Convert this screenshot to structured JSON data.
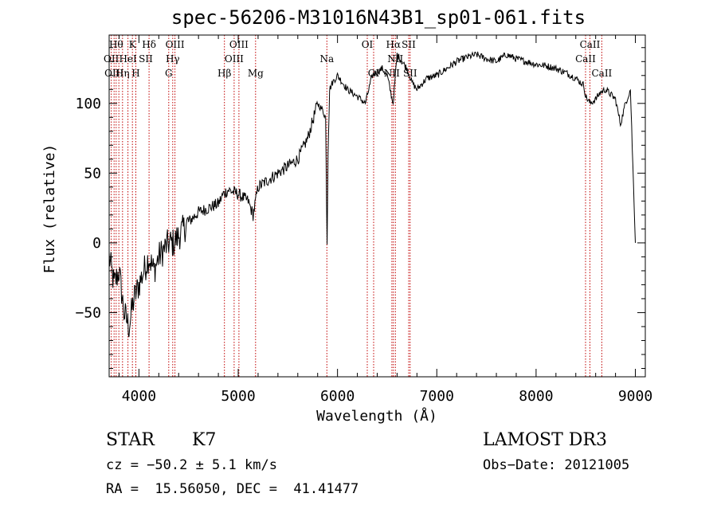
{
  "header": {
    "title": "spec-56206-M31016N43B1_sp01-061.fits"
  },
  "chart_data": {
    "type": "line",
    "title": "spec-56206-M31016N43B1_sp01-061.fits",
    "xlabel": "Wavelength (Å)",
    "ylabel": "Flux (relative)",
    "xlim": [
      3700,
      9100
    ],
    "ylim": [
      -96,
      149
    ],
    "xticks": [
      4000,
      5000,
      6000,
      7000,
      8000,
      9000
    ],
    "xtick_labels": [
      "4000",
      "5000",
      "6000",
      "7000",
      "8000",
      "9000"
    ],
    "yticks": [
      -50,
      0,
      50,
      100
    ],
    "ytick_labels": [
      "−50",
      "0",
      "50",
      "100"
    ],
    "series": [
      {
        "name": "spectrum",
        "x": [
          3700,
          3750,
          3800,
          3850,
          3900,
          3950,
          4000,
          4050,
          4100,
          4150,
          4200,
          4250,
          4300,
          4350,
          4400,
          4500,
          4600,
          4700,
          4800,
          4850,
          4900,
          5000,
          5100,
          5150,
          5200,
          5300,
          5400,
          5500,
          5600,
          5700,
          5800,
          5850,
          5880,
          5895,
          5905,
          5920,
          5950,
          6000,
          6100,
          6200,
          6280,
          6350,
          6450,
          6500,
          6560,
          6600,
          6700,
          6750,
          6800,
          6900,
          7000,
          7100,
          7200,
          7300,
          7400,
          7500,
          7600,
          7700,
          7800,
          7900,
          8000,
          8100,
          8200,
          8300,
          8400,
          8480,
          8500,
          8545,
          8600,
          8650,
          8700,
          8800,
          8850,
          8900,
          8950,
          9000
        ],
        "y": [
          -10,
          -30,
          -20,
          -50,
          -60,
          -40,
          -30,
          -20,
          -10,
          -20,
          -10,
          -5,
          0,
          0,
          5,
          15,
          22,
          25,
          28,
          35,
          38,
          35,
          30,
          20,
          40,
          45,
          50,
          55,
          60,
          75,
          100,
          95,
          90,
          0,
          65,
          110,
          115,
          120,
          110,
          105,
          100,
          120,
          125,
          120,
          100,
          135,
          125,
          115,
          110,
          118,
          120,
          125,
          130,
          133,
          135,
          132,
          130,
          135,
          132,
          130,
          128,
          127,
          125,
          122,
          118,
          113,
          105,
          100,
          103,
          108,
          110,
          103,
          85,
          100,
          110,
          0
        ]
      }
    ],
    "lines": {
      "color": "#c00000",
      "wavelengths": [
        3722,
        3750,
        3771,
        3798,
        3835,
        3889,
        3934,
        3969,
        4102,
        4300,
        4340,
        4363,
        4861,
        4959,
        5007,
        5175,
        5893,
        6300,
        6364,
        6548,
        6563,
        6583,
        6717,
        6731,
        8498,
        8542,
        8662
      ],
      "labels": [
        {
          "text": "Hθ",
          "row": 1,
          "w": 3771
        },
        {
          "text": "K",
          "row": 1,
          "w": 3934
        },
        {
          "text": "Hδ",
          "row": 1,
          "w": 4102
        },
        {
          "text": "OIII",
          "row": 1,
          "w": 4363
        },
        {
          "text": "OIII",
          "row": 1,
          "w": 5007
        },
        {
          "text": "OI",
          "row": 1,
          "w": 6300
        },
        {
          "text": "Hα",
          "row": 1,
          "w": 6563
        },
        {
          "text": "SII",
          "row": 1,
          "w": 6717
        },
        {
          "text": "CaII",
          "row": 1,
          "w": 8542
        },
        {
          "text": "OII",
          "row": 2,
          "w": 3722
        },
        {
          "text": "HeI",
          "row": 2,
          "w": 3889
        },
        {
          "text": "SII",
          "row": 2,
          "w": 4069
        },
        {
          "text": "Hγ",
          "row": 2,
          "w": 4340
        },
        {
          "text": "OIII",
          "row": 2,
          "w": 4959
        },
        {
          "text": "Na",
          "row": 2,
          "w": 5893
        },
        {
          "text": "NII",
          "row": 2,
          "w": 6583
        },
        {
          "text": "CaII",
          "row": 2,
          "w": 8498
        },
        {
          "text": "OIII",
          "row": 3,
          "w": 3750
        },
        {
          "text": "Hη",
          "row": 3,
          "w": 3835
        },
        {
          "text": "H",
          "row": 3,
          "w": 3969
        },
        {
          "text": "G",
          "row": 3,
          "w": 4300
        },
        {
          "text": "Hβ",
          "row": 3,
          "w": 4861
        },
        {
          "text": "Mg",
          "row": 3,
          "w": 5175
        },
        {
          "text": "OI",
          "row": 3,
          "w": 6364
        },
        {
          "text": "NII",
          "row": 3,
          "w": 6548
        },
        {
          "text": "SII",
          "row": 3,
          "w": 6731
        },
        {
          "text": "CaII",
          "row": 3,
          "w": 8662
        }
      ]
    }
  },
  "info": {
    "object_type": "STAR",
    "subclass": "K7",
    "survey": "LAMOST DR3",
    "redshift": "cz = −50.2 ± 5.1 km/s",
    "obs_date": "Obs−Date: 20121005",
    "coords": "RA =  15.56050, DEC =  41.41477"
  }
}
